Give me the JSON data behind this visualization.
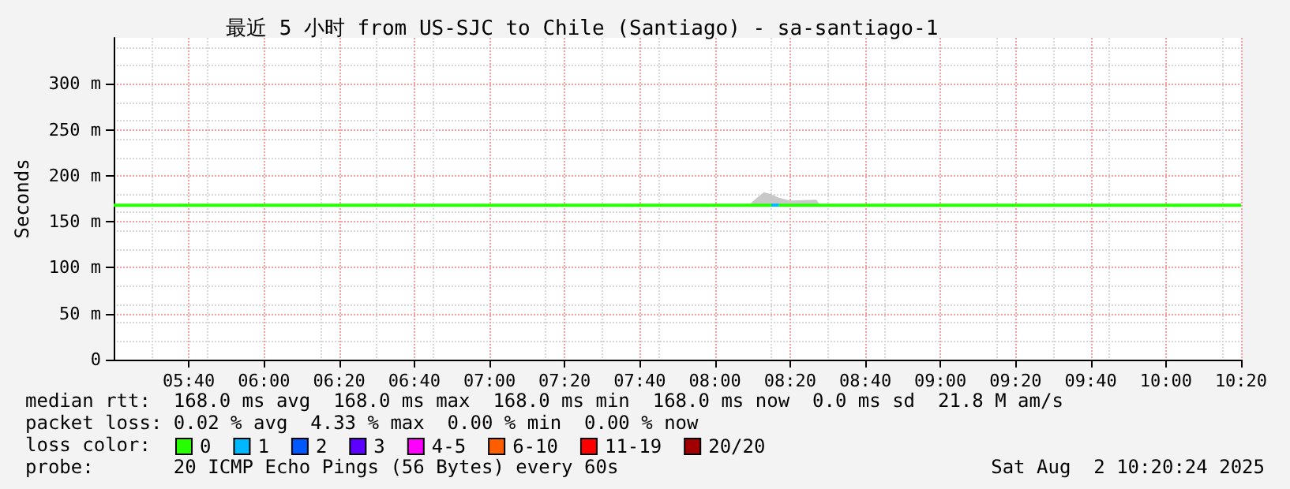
{
  "chart_data": {
    "type": "line",
    "title": "最近 5 小时 from US-SJC to Chile (Santiago) - sa-santiago-1",
    "ylabel": "Seconds",
    "legend_title": "loss color:",
    "xlim": [
      5.3333,
      10.3333
    ],
    "xticks": [
      {
        "value": 5.6667,
        "label": "05:40"
      },
      {
        "value": 6,
        "label": "06:00"
      },
      {
        "value": 6.3333,
        "label": "06:20"
      },
      {
        "value": 6.6667,
        "label": "06:40"
      },
      {
        "value": 7,
        "label": "07:00"
      },
      {
        "value": 7.3333,
        "label": "07:20"
      },
      {
        "value": 7.6667,
        "label": "07:40"
      },
      {
        "value": 8,
        "label": "08:00"
      },
      {
        "value": 8.3333,
        "label": "08:20"
      },
      {
        "value": 8.6667,
        "label": "08:40"
      },
      {
        "value": 9,
        "label": "09:00"
      },
      {
        "value": 9.3333,
        "label": "09:20"
      },
      {
        "value": 9.6667,
        "label": "09:40"
      },
      {
        "value": 10,
        "label": "10:00"
      },
      {
        "value": 10.3333,
        "label": "10:20"
      }
    ],
    "ylim": [
      0,
      350
    ],
    "yticks": [
      0,
      {
        "value": 50,
        "label": "50 m"
      },
      {
        "value": 100,
        "label": "100 m"
      },
      {
        "value": 150,
        "label": "150 m"
      },
      {
        "value": 200,
        "label": "200 m"
      },
      {
        "value": 250,
        "label": "250 m"
      },
      {
        "value": 300,
        "label": "300 m"
      }
    ],
    "grid": true,
    "legend": "bottom left",
    "marker": "none",
    "line_style": "solid",
    "series": [
      {
        "name": "0",
        "color": "#26ff00",
        "x": [
          5.3333,
          8.15,
          8.1667,
          8.2167,
          8.25,
          8.2667,
          8.2833,
          8.3333,
          8.45,
          8.4667,
          10.3333
        ],
        "values": [
          168,
          168,
          168,
          168,
          168,
          null,
          168,
          168,
          168,
          168,
          168
        ],
        "lower": [
          168,
          168,
          168,
          168,
          168,
          null,
          168,
          168,
          168,
          168,
          168
        ],
        "upper": [
          168,
          168,
          172,
          182,
          180,
          null,
          176,
          173,
          174,
          168,
          168
        ]
      },
      {
        "name": "1",
        "color": "#00b8ff",
        "x": [
          8.25,
          8.2833
        ],
        "values": [
          168,
          168
        ]
      },
      {
        "name": "2",
        "color": "#0059ff"
      },
      {
        "name": "3",
        "color": "#5e00ff"
      },
      {
        "name": "4-5",
        "color": "#ff00ff"
      },
      {
        "name": "6-10",
        "color": "#ff5e00"
      },
      {
        "name": "11-19",
        "color": "#ff0000"
      },
      {
        "name": "20/20",
        "color": "#a10000"
      }
    ],
    "annotations": [
      "median rtt:  168.0 ms avg  168.0 ms max  168.0 ms min  168.0 ms now  0.0 ms sd  21.8 M am/s",
      "packet loss: 0.02 % avg  4.33 % max  0.00 % min  0.00 % now",
      "probe:       20 ICMP Echo Pings (56 Bytes) every 60s",
      "Sat Aug  2 10:20:24 2025"
    ]
  }
}
